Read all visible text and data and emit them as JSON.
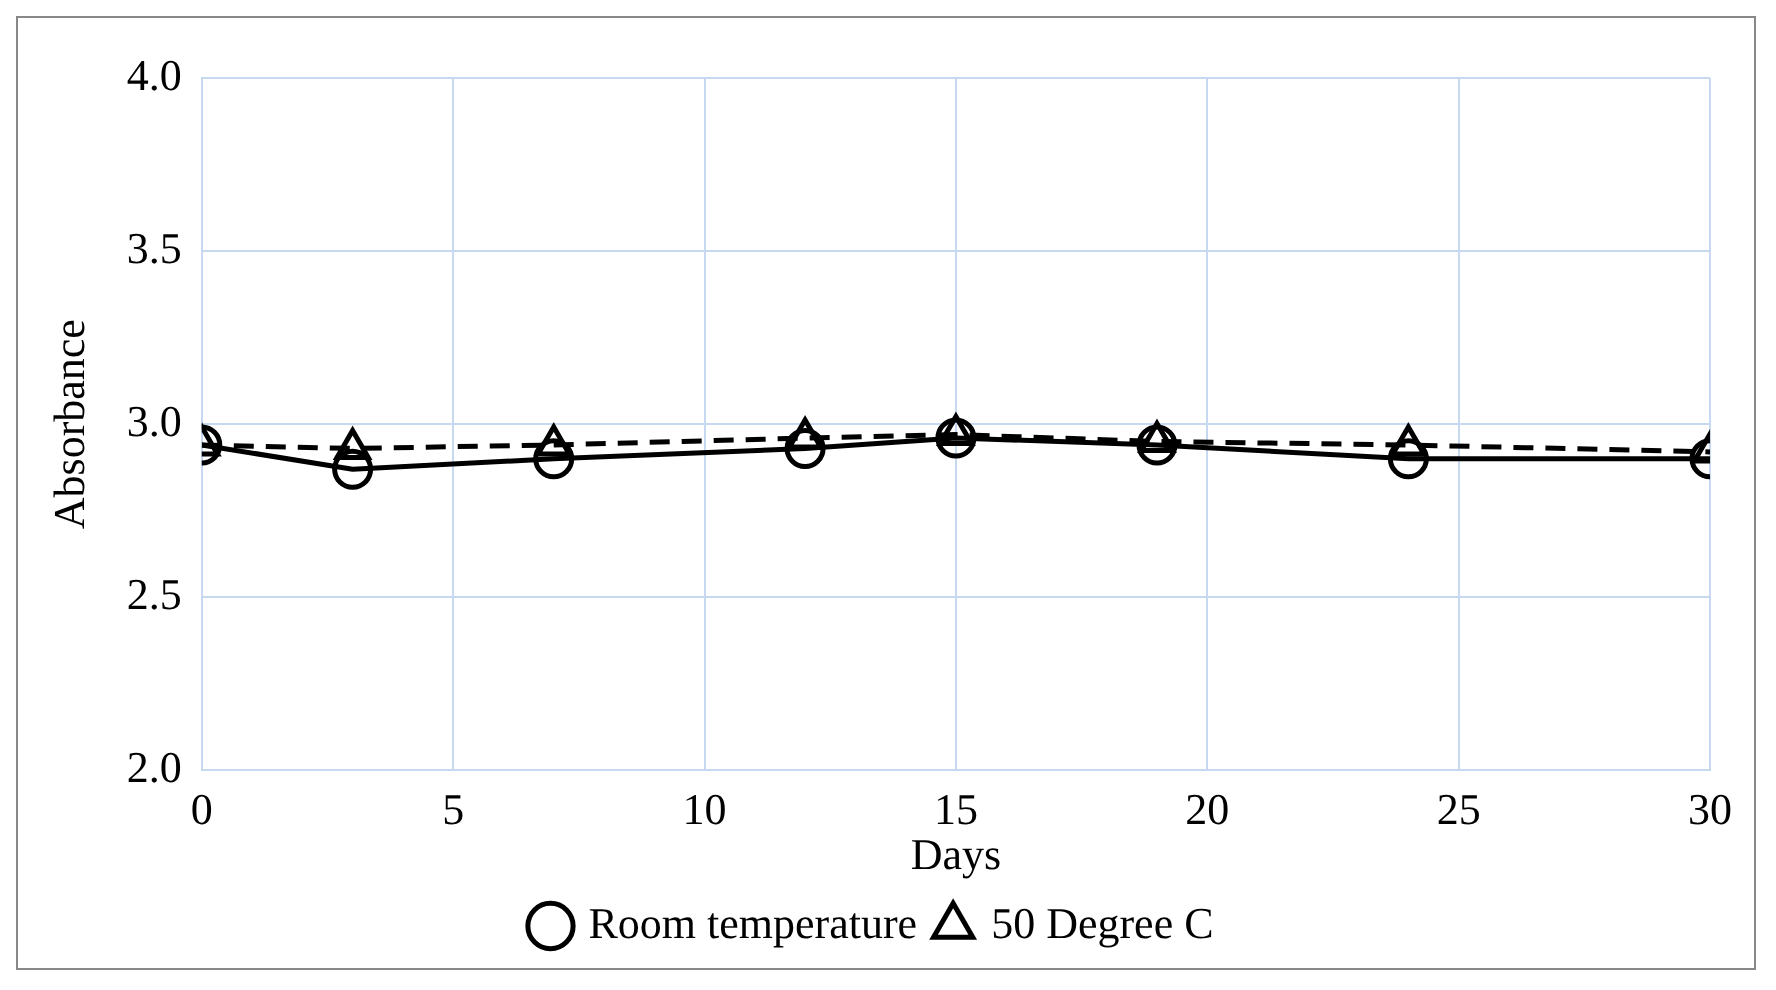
{
  "chart_data": {
    "type": "line",
    "xlabel": "Days",
    "ylabel": "Absorbance",
    "x": [
      0,
      3,
      7,
      12,
      15,
      19,
      24,
      30
    ],
    "series": [
      {
        "name": "Room temperature",
        "color": "#000000",
        "marker": "circle",
        "line_style": "solid",
        "values": [
          2.94,
          2.87,
          2.9,
          2.93,
          2.96,
          2.94,
          2.9,
          2.9
        ]
      },
      {
        "name": "50 Degree C",
        "color": "#000000",
        "marker": "triangle",
        "line_style": "dashed",
        "values": [
          2.94,
          2.93,
          2.94,
          2.96,
          2.97,
          2.95,
          2.94,
          2.92
        ]
      }
    ],
    "xlim": [
      0,
      30
    ],
    "xticks": [
      0,
      5,
      10,
      15,
      20,
      25,
      30
    ],
    "ylim": [
      2.0,
      4.0
    ],
    "yticks": [
      {
        "value": 2,
        "label": "2.0"
      },
      2.5,
      {
        "value": 3,
        "label": "3.0"
      },
      3.5,
      {
        "value": 4,
        "label": "4.0"
      }
    ],
    "grid": true,
    "legend": "bottom"
  }
}
